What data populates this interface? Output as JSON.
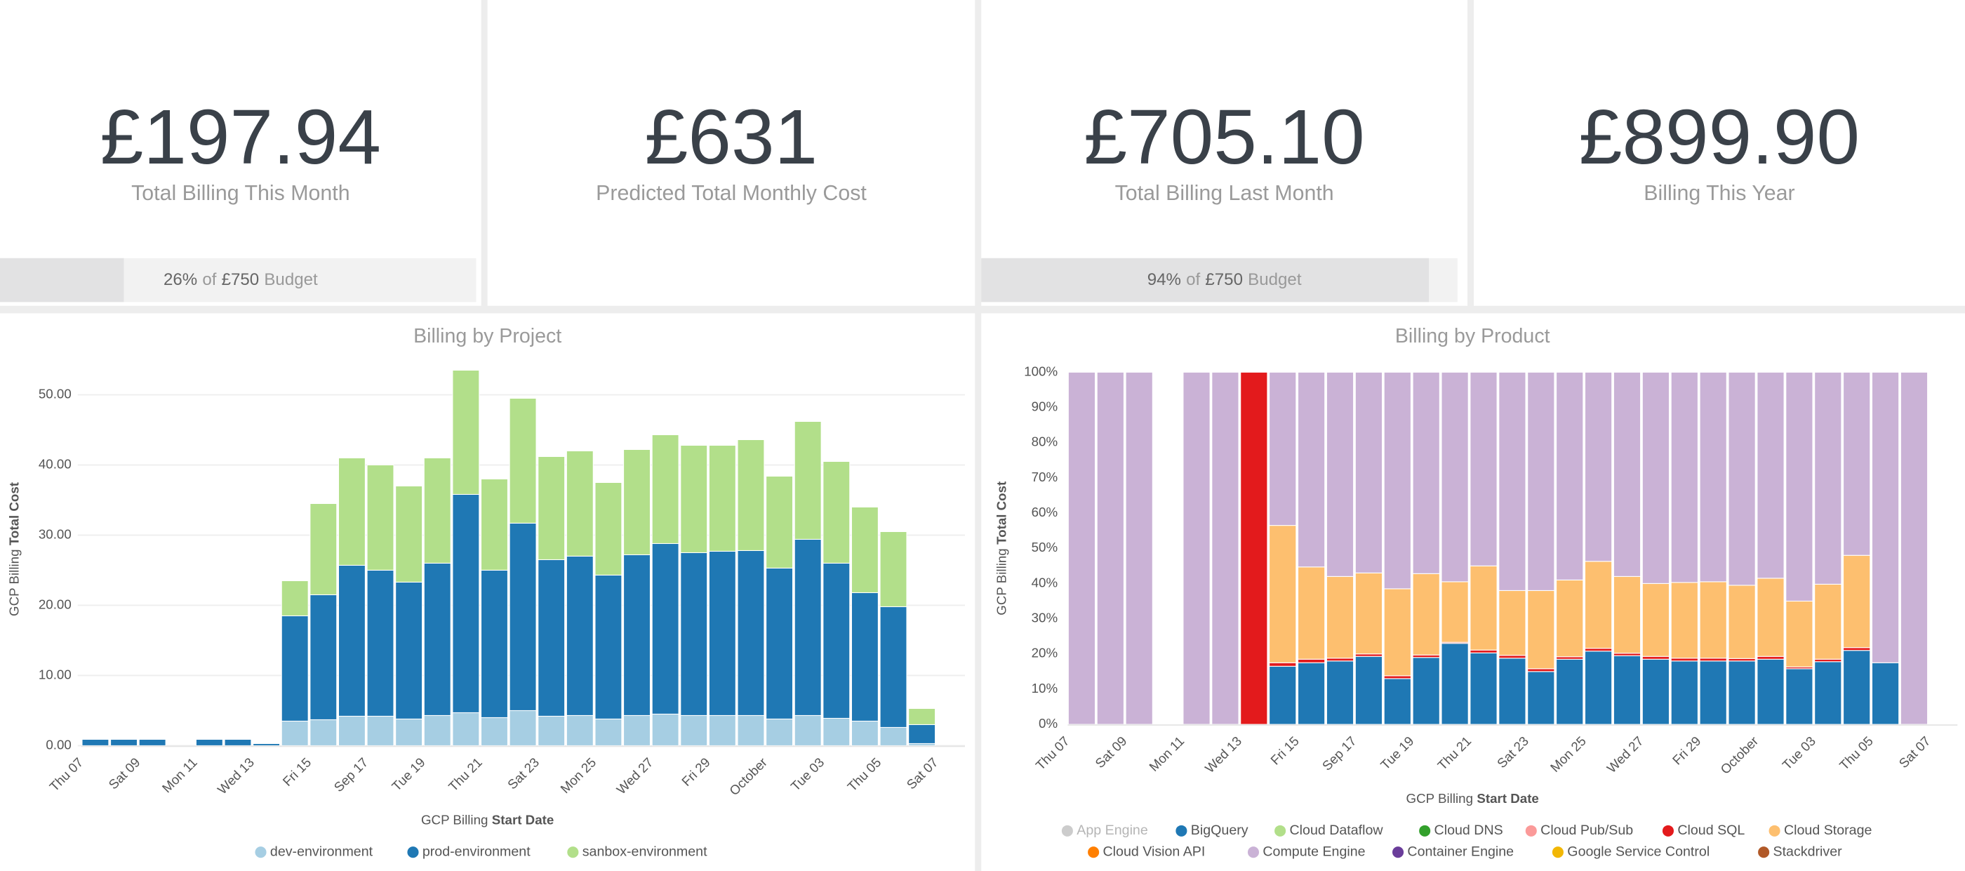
{
  "kpis": [
    {
      "value": "£197.94",
      "label": "Total Billing This Month",
      "budget": {
        "progress": 26,
        "percent": "26%",
        "of": "of",
        "amount": "£750",
        "suffix": "Budget"
      }
    },
    {
      "value": "£631",
      "label": "Predicted Total Monthly Cost"
    },
    {
      "value": "£705.10",
      "label": "Total Billing Last Month",
      "budget": {
        "progress": 94,
        "percent": "94%",
        "of": "of",
        "amount": "£750",
        "suffix": "Budget"
      }
    },
    {
      "value": "£899.90",
      "label": "Billing This Year"
    }
  ],
  "chart_data": [
    {
      "type": "stacked_bar",
      "title": "Billing by Project",
      "y_label": {
        "text": "GCP Billing",
        "emphasis": "Total Cost"
      },
      "x_label": {
        "text": "GCP Billing",
        "emphasis": "Start Date"
      },
      "categories": [
        "Thu 07",
        null,
        "Sat 09",
        null,
        "Mon 11",
        null,
        "Wed 13",
        null,
        "Fri 15",
        null,
        "Sep 17",
        null,
        "Tue 19",
        null,
        "Thu 21",
        null,
        "Sat 23",
        null,
        "Mon 25",
        null,
        "Wed 27",
        null,
        "Fri 29",
        null,
        "October",
        null,
        "Tue 03",
        null,
        "Thu 05",
        null,
        "Sat 07"
      ],
      "series": [
        {
          "name": "dev-environment",
          "color": "#a6cee3",
          "values": [
            null,
            null,
            null,
            null,
            null,
            null,
            null,
            3.5,
            3.7,
            4.2,
            4.2,
            3.8,
            4.3,
            4.7,
            4,
            5,
            4.2,
            4.3,
            3.8,
            4.3,
            4.5,
            4.3,
            4.3,
            4.3,
            3.8,
            4.3,
            3.9,
            3.5,
            2.6,
            0.3,
            null
          ]
        },
        {
          "name": "prod-environment",
          "color": "#1f78b4",
          "values": [
            0.9,
            0.9,
            0.9,
            null,
            0.9,
            0.9,
            0.3,
            15.0,
            17.8,
            21.5,
            20.8,
            19.5,
            21.7,
            31.1,
            21.0,
            26.7,
            22.3,
            22.7,
            20.5,
            22.9,
            24.3,
            23.2,
            23.4,
            23.5,
            21.5,
            25.1,
            22.1,
            18.3,
            17.2,
            2.7,
            null
          ]
        },
        {
          "name": "sanbox-environment",
          "color": "#b2df8a",
          "values": [
            null,
            null,
            null,
            null,
            null,
            null,
            null,
            5.0,
            13.0,
            15.3,
            15.0,
            13.7,
            15.0,
            17.7,
            13.0,
            17.8,
            14.7,
            15.0,
            13.2,
            15.0,
            15.5,
            15.3,
            15.1,
            15.8,
            13.1,
            16.8,
            14.5,
            12.2,
            10.7,
            2.3,
            null
          ]
        }
      ],
      "ylim": [
        0,
        56
      ],
      "yticks": [
        {
          "value": 0,
          "label": "0.00"
        },
        {
          "value": 10,
          "label": "10.00"
        },
        {
          "value": 20,
          "label": "20.00"
        },
        {
          "value": 30,
          "label": "30.00"
        },
        {
          "value": 40,
          "label": "40.00"
        },
        {
          "value": 50,
          "label": "50.00"
        }
      ],
      "grid": true
    },
    {
      "type": "stacked_bar",
      "title": "Billing by Product",
      "y_label": {
        "text": "GCP Billing",
        "emphasis": "Total Cost"
      },
      "x_label": {
        "text": "GCP Billing",
        "emphasis": "Start Date"
      },
      "categories": [
        "Thu 07",
        null,
        "Sat 09",
        null,
        "Mon 11",
        null,
        "Wed 13",
        null,
        "Fri 15",
        null,
        "Sep 17",
        null,
        "Tue 19",
        null,
        "Thu 21",
        null,
        "Sat 23",
        null,
        "Mon 25",
        null,
        "Wed 27",
        null,
        "Fri 29",
        null,
        "October",
        null,
        "Tue 03",
        null,
        "Thu 05",
        null,
        "Sat 07"
      ],
      "series": [
        {
          "name": "App Engine",
          "color": "#cccccc",
          "disabled": true,
          "values": [
            null,
            null,
            null,
            null,
            null,
            null,
            null,
            null,
            null,
            null,
            null,
            null,
            null,
            null,
            null,
            null,
            null,
            null,
            null,
            null,
            null,
            null,
            null,
            null,
            null,
            null,
            null,
            null,
            null,
            null,
            null
          ]
        },
        {
          "name": "BigQuery",
          "color": "#1f78b4",
          "values": [
            null,
            null,
            null,
            null,
            null,
            null,
            null,
            16.5,
            17.5,
            18,
            19.3,
            13,
            19,
            23,
            20.3,
            18.8,
            15,
            18.5,
            20.8,
            19.5,
            18.5,
            18,
            18,
            18,
            18.5,
            15.8,
            17.8,
            21,
            17.5,
            null,
            null
          ]
        },
        {
          "name": "Cloud Dataflow",
          "color": "#b2df8a",
          "values": [
            null,
            null,
            null,
            null,
            null,
            null,
            null,
            null,
            null,
            null,
            null,
            null,
            null,
            null,
            null,
            null,
            null,
            null,
            null,
            null,
            null,
            null,
            null,
            null,
            null,
            null,
            null,
            null,
            null,
            null,
            null
          ]
        },
        {
          "name": "Cloud DNS",
          "color": "#33a02c",
          "values": [
            null,
            null,
            null,
            null,
            null,
            null,
            null,
            null,
            null,
            null,
            null,
            null,
            null,
            null,
            null,
            null,
            null,
            null,
            null,
            null,
            null,
            null,
            null,
            null,
            null,
            null,
            null,
            null,
            null,
            null,
            null
          ]
        },
        {
          "name": "Cloud Pub/Sub",
          "color": "#fb9a99",
          "values": [
            null,
            null,
            null,
            null,
            null,
            null,
            null,
            null,
            null,
            null,
            null,
            null,
            null,
            null,
            null,
            null,
            null,
            null,
            null,
            null,
            null,
            null,
            null,
            null,
            null,
            null,
            null,
            null,
            null,
            null,
            null
          ]
        },
        {
          "name": "Cloud SQL",
          "color": "#e31a1c",
          "values": [
            null,
            null,
            null,
            null,
            null,
            null,
            100,
            1,
            1,
            0.8,
            0.7,
            0.8,
            0.7,
            0.3,
            0.8,
            0.8,
            0.8,
            0.7,
            0.8,
            0.7,
            0.8,
            0.8,
            0.8,
            0.7,
            0.8,
            0.5,
            0.7,
            0.8,
            null,
            null,
            null
          ]
        },
        {
          "name": "Cloud Storage",
          "color": "#fdbf6f",
          "values": [
            null,
            null,
            null,
            null,
            null,
            null,
            null,
            39,
            26.2,
            23.2,
            23,
            24.7,
            23.1,
            17.2,
            23.9,
            18.4,
            22.2,
            21.8,
            24.7,
            21.8,
            20.7,
            21.5,
            21.7,
            20.8,
            22.2,
            18.7,
            21.3,
            26.2,
            null,
            null,
            null
          ]
        },
        {
          "name": "Cloud Vision API",
          "color": "#ff7f00",
          "values": [
            null,
            null,
            null,
            null,
            null,
            null,
            null,
            null,
            null,
            null,
            null,
            null,
            null,
            null,
            null,
            null,
            null,
            null,
            null,
            null,
            null,
            null,
            null,
            null,
            null,
            null,
            null,
            null,
            null,
            null,
            null
          ]
        },
        {
          "name": "Compute Engine",
          "color": "#cab2d6",
          "values": [
            100,
            100,
            100,
            null,
            100,
            100,
            null,
            43.5,
            55.3,
            58,
            57,
            61.5,
            57.2,
            59.5,
            55,
            62,
            62,
            59,
            53.7,
            58,
            60,
            59.7,
            59.5,
            60.5,
            58.5,
            65,
            60.2,
            52,
            82.5,
            100,
            null
          ]
        },
        {
          "name": "Container Engine",
          "color": "#6a3d9a",
          "values": [
            null,
            null,
            null,
            null,
            null,
            null,
            null,
            null,
            null,
            null,
            null,
            null,
            null,
            null,
            null,
            null,
            null,
            null,
            null,
            null,
            null,
            null,
            null,
            null,
            null,
            null,
            null,
            null,
            null,
            null,
            null
          ]
        },
        {
          "name": "Google Service Control",
          "color": "#f2b705",
          "values": [
            null,
            null,
            null,
            null,
            null,
            null,
            null,
            null,
            null,
            null,
            null,
            null,
            null,
            null,
            null,
            null,
            null,
            null,
            null,
            null,
            null,
            null,
            null,
            null,
            null,
            null,
            null,
            null,
            null,
            null,
            null
          ]
        },
        {
          "name": "Stackdriver",
          "color": "#b15928",
          "values": [
            null,
            null,
            null,
            null,
            null,
            null,
            null,
            null,
            null,
            null,
            null,
            null,
            null,
            null,
            null,
            null,
            null,
            null,
            null,
            null,
            null,
            null,
            null,
            null,
            null,
            null,
            null,
            null,
            null,
            null,
            null
          ]
        }
      ],
      "ylim": [
        0,
        100
      ],
      "yticks": [
        {
          "value": 0,
          "label": "0%"
        },
        {
          "value": 10,
          "label": "10%"
        },
        {
          "value": 20,
          "label": "20%"
        },
        {
          "value": 30,
          "label": "30%"
        },
        {
          "value": 40,
          "label": "40%"
        },
        {
          "value": 50,
          "label": "50%"
        },
        {
          "value": 60,
          "label": "60%"
        },
        {
          "value": 70,
          "label": "70%"
        },
        {
          "value": 80,
          "label": "80%"
        },
        {
          "value": 90,
          "label": "90%"
        },
        {
          "value": 100,
          "label": "100%"
        }
      ],
      "grid": false
    }
  ]
}
